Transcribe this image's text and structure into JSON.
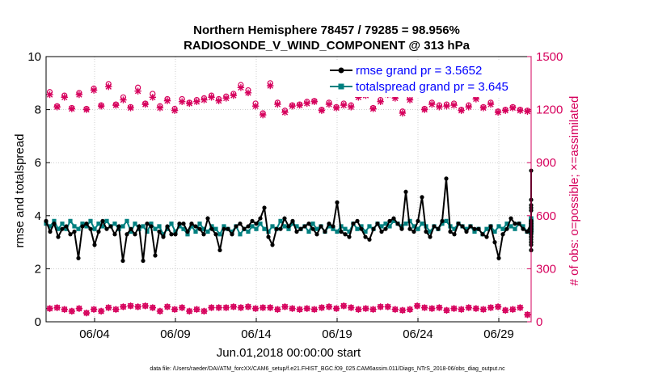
{
  "chart_data": {
    "type": "line",
    "title": "Northern Hemisphere 78457 / 79285 = 98.956%",
    "subtitle": "RADIOSONDE_V_WIND_COMPONENT @ 313 hPa",
    "xlabel": "Jun.01,2018 00:00:00 start",
    "ylabel": "rmse and totalspread",
    "ylabel_right": "# of obs: o=possible; ×=assimilated",
    "footer": "data file: /Users/raeder/DAI/ATM_forcXX/CAM6_setup/f.e21.FHIST_BGC.f09_025.CAM6assim.011/Diags_NTrS_2018-06/obs_diag_output.nc",
    "xlim": [
      0.5,
      30.5
    ],
    "ylim": [
      0,
      10
    ],
    "ylim_right": [
      0,
      1500
    ],
    "x_ticks": [
      3.5,
      8.5,
      13.5,
      18.5,
      23.5,
      28.5
    ],
    "x_tick_labels": [
      "06/04",
      "06/09",
      "06/14",
      "06/19",
      "06/24",
      "06/29"
    ],
    "y_ticks": [
      0,
      2,
      4,
      6,
      8,
      10
    ],
    "y_tick_labels": [
      "0",
      "2",
      "4",
      "6",
      "8",
      "10"
    ],
    "y_ticks_right": [
      0,
      300,
      600,
      900,
      1200,
      1500
    ],
    "y_tick_labels_right": [
      "0",
      "300",
      "600",
      "900",
      "1200",
      "1500"
    ],
    "grid": true,
    "legend": "top-right",
    "colors": {
      "rmse": "#000000",
      "spread": "#008080",
      "obs": "#d6005c",
      "axis_right": "#d6005c",
      "legend_text": "#0000ff"
    },
    "x_start": 0.5,
    "x_step": 0.25,
    "series": [
      {
        "name": "rmse",
        "label": "rmse grand pr = 3.5652",
        "values": [
          3.8,
          3.4,
          3.7,
          3.2,
          3.5,
          3.6,
          3.3,
          3.4,
          2.4,
          3.6,
          3.7,
          3.5,
          2.9,
          3.4,
          3.8,
          3.5,
          3.6,
          3.3,
          3.6,
          2.3,
          3.3,
          3.5,
          3.3,
          3.6,
          2.3,
          3.7,
          3.6,
          2.5,
          3.4,
          3.2,
          3.6,
          3.3,
          3.3,
          3.7,
          3.7,
          3.4,
          3.7,
          3.6,
          3.5,
          3.3,
          3.9,
          3.5,
          3.3,
          2.7,
          3.5,
          3.5,
          3.3,
          3.6,
          3.7,
          3.5,
          3.6,
          3.8,
          3.7,
          3.9,
          4.3,
          3.2,
          2.9,
          3.5,
          3.5,
          3.9,
          3.6,
          3.8,
          3.4,
          3.5,
          3.6,
          3.7,
          3.5,
          3.3,
          3.6,
          3.4,
          3.7,
          3.6,
          4.5,
          3.4,
          3.3,
          3.2,
          3.7,
          3.8,
          3.5,
          3.2,
          3.1,
          3.5,
          3.7,
          3.4,
          3.5,
          3.8,
          3.9,
          3.7,
          3.5,
          4.9,
          3.5,
          3.4,
          3.8,
          4.7,
          3.4,
          3.2,
          3.6,
          3.5,
          3.8,
          5.4,
          3.4,
          3.3,
          3.7,
          3.6,
          3.4,
          3.6,
          3.5,
          3.5,
          3.3,
          3.2,
          3.6,
          3.0,
          2.4,
          3.3,
          3.5,
          3.9,
          3.7,
          3.7,
          3.5,
          3.4,
          3.7,
          3.2,
          3.2,
          3.5,
          3.7,
          4.6,
          3.6,
          3.4,
          3.6,
          3.4,
          5.7,
          3.6,
          3.7,
          3.5,
          3.6,
          3.7,
          3.7,
          3.5,
          3.6,
          3.4,
          3.7,
          3.6,
          3.5,
          3.5,
          4.4,
          3.4,
          3.7,
          4.3,
          3.6,
          3.6,
          3.5,
          3.0,
          3.6,
          3.4,
          3.2,
          3.7,
          3.7,
          3.6,
          3.7,
          3.6,
          3.3,
          3.6,
          3.7,
          3.6,
          3.8,
          3.5,
          3.6,
          3.4,
          4.2,
          3.5,
          3.1,
          2.7,
          3.5,
          3.4,
          3.0,
          3.6,
          3.5,
          3.4,
          3.7,
          3.3,
          3.5,
          3.3,
          2.7,
          3.7,
          3.8,
          3.4,
          3.6,
          3.4,
          2.9,
          3.5,
          3.8,
          3.8,
          3.8,
          3.8,
          3.2,
          3.6,
          3.8,
          3.5,
          3.7,
          3.8,
          3.5,
          3.6,
          3.8,
          3.7,
          3.8,
          3.8
        ]
      },
      {
        "name": "totalspread",
        "label": "totalspread grand pr = 3.645",
        "values": [
          3.7,
          3.6,
          3.8,
          3.5,
          3.7,
          3.5,
          3.8,
          3.6,
          3.5,
          3.7,
          3.6,
          3.8,
          3.5,
          3.7,
          3.6,
          3.8,
          3.6,
          3.7,
          3.5,
          3.6,
          3.8,
          3.4,
          3.7,
          3.5,
          3.6,
          3.4,
          3.7,
          3.5,
          3.6,
          3.3,
          3.5,
          3.7,
          3.4,
          3.6,
          3.5,
          3.3,
          3.6,
          3.4,
          3.7,
          3.5,
          3.4,
          3.6,
          3.5,
          3.3,
          3.6,
          3.5,
          3.4,
          3.6,
          3.3,
          3.5,
          3.4,
          3.6,
          3.5,
          3.7,
          3.5,
          3.4,
          3.6,
          3.5,
          3.8,
          3.6,
          3.5,
          3.7,
          3.6,
          3.5,
          3.6,
          3.4,
          3.7,
          3.5,
          3.6,
          3.4,
          3.6,
          3.5,
          3.4,
          3.6,
          3.5,
          3.4,
          3.7,
          3.5,
          3.6,
          3.4,
          3.6,
          3.5,
          3.7,
          3.6,
          3.7,
          3.6,
          3.8,
          3.7,
          3.6,
          3.7,
          3.8,
          3.6,
          3.5,
          3.7,
          3.6,
          3.4,
          3.6,
          3.5,
          3.7,
          3.8,
          3.6,
          3.5,
          3.7,
          3.6,
          3.5,
          3.6,
          3.4,
          3.5,
          3.3,
          3.5,
          3.6,
          3.4,
          3.6,
          3.5,
          3.7,
          3.6,
          3.5,
          3.7,
          3.6,
          3.4,
          3.5,
          3.7,
          3.6,
          3.5,
          3.8,
          3.9,
          3.6,
          3.7,
          3.6,
          3.8,
          3.9,
          3.8,
          3.7,
          3.9,
          3.8,
          3.7,
          3.6,
          3.8,
          3.7,
          3.6,
          3.7,
          3.8,
          3.7,
          3.6,
          3.8,
          3.7,
          3.6,
          3.8,
          3.7,
          3.6,
          3.5,
          3.7,
          3.6,
          3.5,
          3.7,
          3.6,
          3.7,
          3.6,
          3.5,
          3.7,
          3.6,
          3.5,
          3.7,
          3.6,
          3.7,
          3.6,
          3.5,
          3.7,
          3.6,
          3.5,
          3.6,
          3.4,
          3.6,
          3.5,
          3.6,
          3.4,
          3.5,
          3.6,
          3.4,
          3.6,
          3.5,
          3.4,
          3.6,
          3.5,
          3.6,
          3.4,
          3.6,
          3.5,
          3.4,
          3.6,
          3.5,
          3.6,
          3.7,
          3.6,
          3.5,
          3.7,
          3.6,
          3.7,
          3.6,
          3.7,
          3.8,
          3.7,
          3.8,
          3.8
        ]
      }
    ],
    "obs_possible_upper": [
      1300,
      1220,
      1280,
      1210,
      1295,
      1205,
      1320,
      1225,
      1345,
      1230,
      1270,
      1215,
      1325,
      1235,
      1290,
      1220,
      1260,
      1205,
      1260,
      1240,
      1255,
      1265,
      1280,
      1260,
      1275,
      1290,
      1340,
      1310,
      1235,
      1180,
      1350,
      1240,
      1195,
      1225,
      1230,
      1245,
      1250,
      1200,
      1240,
      1215,
      1235,
      1225,
      1280,
      1290,
      1210,
      1255,
      1295,
      1275,
      1190,
      1265,
      1310,
      1205,
      1240,
      1225,
      1230,
      1235,
      1200,
      1225,
      1270,
      1215,
      1240,
      1190,
      1200,
      1215,
      1200,
      1195
    ],
    "obs_assimilated_upper": [
      1285,
      1215,
      1270,
      1205,
      1285,
      1200,
      1310,
      1220,
      1330,
      1225,
      1255,
      1210,
      1305,
      1230,
      1270,
      1210,
      1250,
      1195,
      1245,
      1235,
      1245,
      1255,
      1270,
      1250,
      1265,
      1280,
      1325,
      1295,
      1220,
      1170,
      1335,
      1230,
      1185,
      1220,
      1225,
      1235,
      1245,
      1195,
      1230,
      1210,
      1225,
      1215,
      1270,
      1280,
      1205,
      1245,
      1285,
      1265,
      1180,
      1255,
      1295,
      1200,
      1230,
      1215,
      1220,
      1225,
      1195,
      1215,
      1260,
      1210,
      1230,
      1185,
      1195,
      1210,
      1195,
      1190
    ],
    "obs_possible_lower": [
      75,
      80,
      70,
      60,
      75,
      50,
      70,
      60,
      80,
      70,
      85,
      90,
      85,
      90,
      80,
      60,
      85,
      70,
      80,
      60,
      70,
      60,
      80,
      80,
      80,
      85,
      80,
      85,
      75,
      80,
      80,
      70,
      85,
      75,
      70,
      75,
      70,
      80,
      85,
      75,
      90,
      80,
      70,
      75,
      70,
      85,
      85,
      70,
      65,
      70,
      90,
      80,
      75,
      80,
      65,
      75,
      70,
      80,
      75,
      70,
      80,
      85,
      65,
      70,
      80,
      40
    ],
    "obs_assimilated_lower": [
      75,
      80,
      70,
      60,
      75,
      50,
      70,
      60,
      80,
      70,
      85,
      90,
      85,
      90,
      80,
      60,
      85,
      70,
      80,
      60,
      70,
      60,
      80,
      80,
      80,
      85,
      80,
      85,
      75,
      80,
      80,
      70,
      85,
      75,
      70,
      75,
      70,
      80,
      85,
      75,
      90,
      80,
      70,
      75,
      70,
      85,
      85,
      70,
      65,
      70,
      90,
      80,
      75,
      80,
      65,
      75,
      70,
      80,
      75,
      70,
      80,
      85,
      65,
      70,
      80,
      40
    ]
  }
}
